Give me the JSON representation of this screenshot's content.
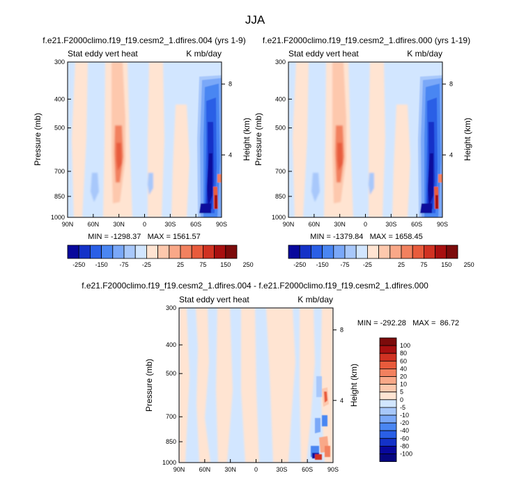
{
  "page_title": "JJA",
  "colors": {
    "blue_scale": [
      "#08089c",
      "#1432c8",
      "#2a5fe6",
      "#4a86f2",
      "#7aa8f8",
      "#a8c8fb",
      "#d2e6ff"
    ],
    "red_scale": [
      "#ffe4d2",
      "#fdc8ad",
      "#f9a888",
      "#f2815f",
      "#e85b3c",
      "#d03222",
      "#a81010",
      "#7c0b0b"
    ]
  },
  "chart_data": [
    {
      "type": "heatmap",
      "title": "f.e21.F2000climo.f19_f19.cesm2_1.dfires.004 (yrs 1-9)",
      "left_label": "Stat eddy vert heat",
      "right_label": "K mb/day",
      "ylabel": "Pressure (mb)",
      "ylabel_right": "Height (km)",
      "x_ticks": [
        "90N",
        "60N",
        "30N",
        "0",
        "30S",
        "60S",
        "90S"
      ],
      "y_ticks": [
        "300",
        "400",
        "500",
        "700",
        "850",
        "1000"
      ],
      "y_right_ticks": [
        "8",
        "4"
      ],
      "min_max_text": "MIN = -1298.37   MAX = 1561.57",
      "colorbar": {
        "orientation": "horizontal",
        "labels": [
          "-250",
          "-150",
          "-75",
          "-25",
          "25",
          "75",
          "150",
          "250"
        ],
        "boundaries": [
          -250,
          -200,
          -150,
          -100,
          -75,
          -50,
          -25,
          0,
          25,
          50,
          75,
          100,
          150,
          200,
          250
        ]
      }
    },
    {
      "type": "heatmap",
      "title": "f.e21.F2000climo.f19_f19.cesm2_1.dfires.000 (yrs 1-19)",
      "left_label": "Stat eddy vert heat",
      "right_label": "K mb/day",
      "ylabel": "Pressure (mb)",
      "ylabel_right": "Height (km)",
      "x_ticks": [
        "90N",
        "60N",
        "30N",
        "0",
        "30S",
        "60S",
        "90S"
      ],
      "y_ticks": [
        "300",
        "400",
        "500",
        "700",
        "850",
        "1000"
      ],
      "y_right_ticks": [
        "8",
        "4"
      ],
      "min_max_text": "MIN = -1379.84   MAX = 1658.45",
      "colorbar": {
        "orientation": "horizontal",
        "labels": [
          "-250",
          "-150",
          "-75",
          "-25",
          "25",
          "75",
          "150",
          "250"
        ],
        "boundaries": [
          -250,
          -200,
          -150,
          -100,
          -75,
          -50,
          -25,
          0,
          25,
          50,
          75,
          100,
          150,
          200,
          250
        ]
      }
    },
    {
      "type": "heatmap",
      "title": "f.e21.F2000climo.f19_f19.cesm2_1.dfires.004 - f.e21.F2000climo.f19_f19.cesm2_1.dfires.000",
      "left_label": "Stat eddy vert heat",
      "right_label": "K mb/day",
      "ylabel": "Pressure (mb)",
      "ylabel_right": "Height (km)",
      "x_ticks": [
        "90N",
        "60N",
        "30N",
        "0",
        "30S",
        "60S",
        "90S"
      ],
      "y_ticks": [
        "300",
        "400",
        "500",
        "700",
        "850",
        "1000"
      ],
      "y_right_ticks": [
        "8",
        "4"
      ],
      "min_max_text": "MIN = -292.28   MAX =  86.72",
      "colorbar": {
        "orientation": "vertical",
        "labels": [
          "100",
          "80",
          "60",
          "40",
          "20",
          "10",
          "5",
          "0",
          "-5",
          "-10",
          "-20",
          "-40",
          "-60",
          "-80",
          "-100"
        ]
      }
    }
  ]
}
